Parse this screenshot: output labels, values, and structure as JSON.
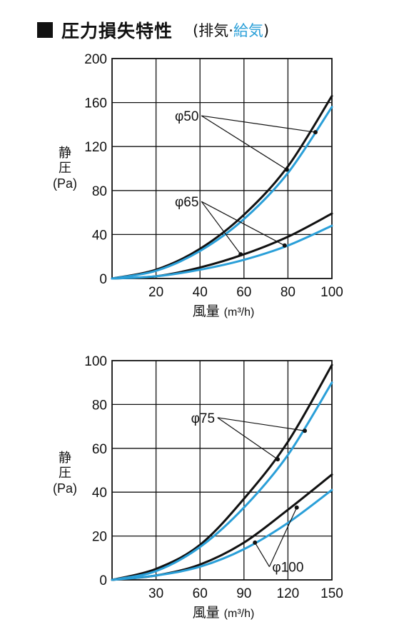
{
  "header": {
    "title": "圧力損失特性",
    "open_paren": "(",
    "exhaust": "排気·",
    "supply": "給気",
    "close_paren": ")"
  },
  "colors": {
    "exhaust": "#111111",
    "supply": "#2a9fd8",
    "grid": "#111111"
  },
  "chart_data": [
    {
      "type": "line",
      "title": "",
      "xlabel": "風量",
      "xlabel_unit": "(m³/h)",
      "ylabel_lines": [
        "静",
        "圧",
        "(Pa)"
      ],
      "xlim": [
        0,
        100
      ],
      "ylim": [
        0,
        200
      ],
      "x_ticks": [
        20,
        40,
        60,
        80,
        100
      ],
      "y_ticks": [
        0,
        40,
        80,
        120,
        160,
        200
      ],
      "grid": true,
      "series": [
        {
          "name": "φ50",
          "role": "exhaust",
          "x": [
            0,
            20,
            40,
            60,
            80,
            100
          ],
          "y": [
            0,
            8,
            27,
            58,
            102,
            166
          ]
        },
        {
          "name": "φ50",
          "role": "supply",
          "x": [
            0,
            20,
            40,
            60,
            80,
            100
          ],
          "y": [
            0,
            7,
            25,
            54,
            96,
            156
          ]
        },
        {
          "name": "φ65",
          "role": "exhaust",
          "x": [
            0,
            20,
            40,
            60,
            80,
            100
          ],
          "y": [
            0,
            2,
            10,
            22,
            38,
            59
          ]
        },
        {
          "name": "φ65",
          "role": "supply",
          "x": [
            0,
            20,
            40,
            60,
            80,
            100
          ],
          "y": [
            0,
            2,
            8,
            17,
            30,
            48
          ]
        }
      ],
      "labels": [
        {
          "text": "φ50",
          "x": 34,
          "y": 148,
          "targets": [
            [
              79.5,
              99
            ],
            [
              92.5,
              133
            ]
          ]
        },
        {
          "text": "φ65",
          "x": 34,
          "y": 70,
          "targets": [
            [
              58.5,
              22
            ],
            [
              78.5,
              30
            ]
          ]
        }
      ]
    },
    {
      "type": "line",
      "title": "",
      "xlabel": "風量",
      "xlabel_unit": "(m³/h)",
      "ylabel_lines": [
        "静",
        "圧",
        "(Pa)"
      ],
      "xlim": [
        0,
        150
      ],
      "ylim": [
        0,
        100
      ],
      "x_ticks": [
        30,
        60,
        90,
        120,
        150
      ],
      "y_ticks": [
        0,
        20,
        40,
        60,
        80,
        100
      ],
      "grid": true,
      "series": [
        {
          "name": "φ75",
          "role": "exhaust",
          "x": [
            0,
            30,
            60,
            90,
            120,
            150
          ],
          "y": [
            0,
            5,
            16,
            37,
            63,
            98
          ]
        },
        {
          "name": "φ75",
          "role": "supply",
          "x": [
            0,
            30,
            60,
            90,
            120,
            150
          ],
          "y": [
            0,
            4,
            15,
            33,
            57,
            90
          ]
        },
        {
          "name": "φ100",
          "role": "exhaust",
          "x": [
            0,
            30,
            60,
            90,
            120,
            150
          ],
          "y": [
            0,
            2,
            7,
            17,
            32,
            48
          ]
        },
        {
          "name": "φ100",
          "role": "supply",
          "x": [
            0,
            30,
            60,
            90,
            120,
            150
          ],
          "y": [
            0,
            2,
            6,
            14,
            26,
            41
          ]
        }
      ],
      "labels": [
        {
          "text": "φ75",
          "x": 62,
          "y": 74,
          "targets": [
            [
              113,
              55
            ],
            [
              131.5,
              68
            ]
          ]
        },
        {
          "text": "φ100",
          "x": 120,
          "y": 6,
          "targets": [
            [
              97.5,
              17
            ],
            [
              126,
              33
            ]
          ]
        }
      ]
    }
  ]
}
